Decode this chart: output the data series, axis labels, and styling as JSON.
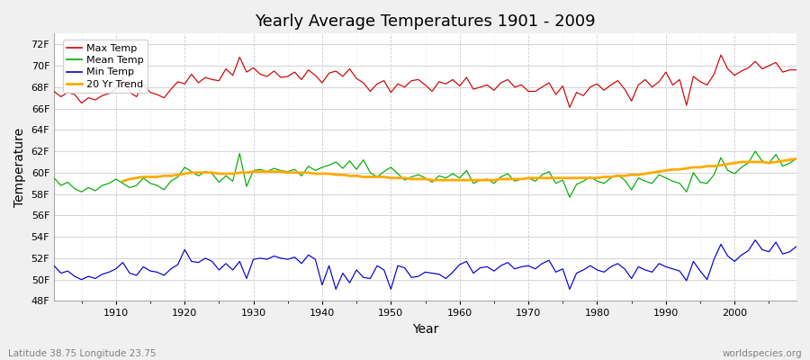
{
  "title": "Yearly Average Temperatures 1901 - 2009",
  "xlabel": "Year",
  "ylabel": "Temperature",
  "footnote_left": "Latitude 38.75 Longitude 23.75",
  "footnote_right": "worldspecies.org",
  "years": [
    1901,
    1902,
    1903,
    1904,
    1905,
    1906,
    1907,
    1908,
    1909,
    1910,
    1911,
    1912,
    1913,
    1914,
    1915,
    1916,
    1917,
    1918,
    1919,
    1920,
    1921,
    1922,
    1923,
    1924,
    1925,
    1926,
    1927,
    1928,
    1929,
    1930,
    1931,
    1932,
    1933,
    1934,
    1935,
    1936,
    1937,
    1938,
    1939,
    1940,
    1941,
    1942,
    1943,
    1944,
    1945,
    1946,
    1947,
    1948,
    1949,
    1950,
    1951,
    1952,
    1953,
    1954,
    1955,
    1956,
    1957,
    1958,
    1959,
    1960,
    1961,
    1962,
    1963,
    1964,
    1965,
    1966,
    1967,
    1968,
    1969,
    1970,
    1971,
    1972,
    1973,
    1974,
    1975,
    1976,
    1977,
    1978,
    1979,
    1980,
    1981,
    1982,
    1983,
    1984,
    1985,
    1986,
    1987,
    1988,
    1989,
    1990,
    1991,
    1992,
    1993,
    1994,
    1995,
    1996,
    1997,
    1998,
    1999,
    2000,
    2001,
    2002,
    2003,
    2004,
    2005,
    2006,
    2007,
    2008,
    2009
  ],
  "max_temp": [
    67.6,
    67.1,
    67.5,
    67.3,
    66.5,
    67.0,
    66.8,
    67.2,
    67.4,
    67.8,
    68.9,
    67.5,
    67.1,
    68.3,
    67.5,
    67.3,
    67.0,
    67.8,
    68.5,
    68.3,
    69.2,
    68.4,
    68.9,
    68.7,
    68.6,
    69.7,
    69.1,
    70.8,
    69.4,
    69.8,
    69.2,
    69.0,
    69.5,
    68.9,
    69.0,
    69.4,
    68.7,
    69.6,
    69.1,
    68.4,
    69.3,
    69.5,
    69.0,
    69.7,
    68.8,
    68.4,
    67.6,
    68.3,
    68.6,
    67.5,
    68.3,
    68.0,
    68.6,
    68.7,
    68.2,
    67.6,
    68.5,
    68.3,
    68.7,
    68.1,
    68.9,
    67.8,
    68.0,
    68.2,
    67.7,
    68.4,
    68.7,
    68.0,
    68.2,
    67.6,
    67.6,
    68.0,
    68.4,
    67.3,
    68.1,
    66.1,
    67.5,
    67.2,
    68.0,
    68.3,
    67.7,
    68.2,
    68.6,
    67.8,
    66.7,
    68.2,
    68.7,
    68.0,
    68.5,
    69.4,
    68.2,
    68.7,
    66.3,
    69.0,
    68.5,
    68.2,
    69.2,
    71.0,
    69.7,
    69.1,
    69.5,
    69.8,
    70.4,
    69.7,
    70.0,
    70.3,
    69.4,
    69.6,
    69.6
  ],
  "mean_temp": [
    59.5,
    58.8,
    59.1,
    58.5,
    58.2,
    58.6,
    58.3,
    58.8,
    59.0,
    59.4,
    59.0,
    58.6,
    58.8,
    59.5,
    59.0,
    58.8,
    58.4,
    59.2,
    59.6,
    60.5,
    60.1,
    59.7,
    60.1,
    59.9,
    59.1,
    59.7,
    59.2,
    61.8,
    58.7,
    60.2,
    60.3,
    60.1,
    60.4,
    60.2,
    60.1,
    60.3,
    59.7,
    60.6,
    60.2,
    60.5,
    60.7,
    61.0,
    60.4,
    61.1,
    60.3,
    61.2,
    60.0,
    59.6,
    60.1,
    60.5,
    59.9,
    59.3,
    59.6,
    59.8,
    59.5,
    59.1,
    59.7,
    59.5,
    59.9,
    59.5,
    60.2,
    59.0,
    59.3,
    59.4,
    59.0,
    59.6,
    59.9,
    59.2,
    59.4,
    59.5,
    59.2,
    59.8,
    60.1,
    59.0,
    59.3,
    57.7,
    58.9,
    59.2,
    59.6,
    59.2,
    59.0,
    59.5,
    59.8,
    59.3,
    58.4,
    59.5,
    59.2,
    59.0,
    59.8,
    59.5,
    59.2,
    59.0,
    58.2,
    60.0,
    59.1,
    59.0,
    59.8,
    61.4,
    60.2,
    59.9,
    60.5,
    60.9,
    62.0,
    61.1,
    60.9,
    61.7,
    60.6,
    60.9,
    61.3
  ],
  "min_temp": [
    51.3,
    50.6,
    50.8,
    50.3,
    50.0,
    50.3,
    50.1,
    50.5,
    50.7,
    51.0,
    51.6,
    50.6,
    50.4,
    51.2,
    50.8,
    50.7,
    50.4,
    51.0,
    51.4,
    52.8,
    51.7,
    51.6,
    52.0,
    51.7,
    50.9,
    51.5,
    50.9,
    51.7,
    50.1,
    51.9,
    52.0,
    51.9,
    52.2,
    52.0,
    51.9,
    52.1,
    51.5,
    52.3,
    51.9,
    49.5,
    51.3,
    49.1,
    50.6,
    49.7,
    50.9,
    50.2,
    50.1,
    51.3,
    50.9,
    49.1,
    51.3,
    51.1,
    50.2,
    50.3,
    50.7,
    50.6,
    50.5,
    50.1,
    50.7,
    51.4,
    51.7,
    50.6,
    51.1,
    51.2,
    50.8,
    51.3,
    51.6,
    51.0,
    51.2,
    51.3,
    51.0,
    51.5,
    51.8,
    50.7,
    51.0,
    49.1,
    50.6,
    50.9,
    51.3,
    50.9,
    50.7,
    51.2,
    51.5,
    51.0,
    50.1,
    51.2,
    50.9,
    50.7,
    51.5,
    51.2,
    51.0,
    50.8,
    49.9,
    51.7,
    50.8,
    50.0,
    51.9,
    53.3,
    52.2,
    51.7,
    52.3,
    52.7,
    53.7,
    52.8,
    52.6,
    53.5,
    52.4,
    52.6,
    53.1
  ],
  "trend_years": [
    1911,
    1912,
    1913,
    1914,
    1915,
    1916,
    1917,
    1918,
    1919,
    1920,
    1921,
    1922,
    1923,
    1924,
    1925,
    1926,
    1927,
    1928,
    1929,
    1930,
    1931,
    1932,
    1933,
    1934,
    1935,
    1936,
    1937,
    1938,
    1939,
    1940,
    1941,
    1942,
    1943,
    1944,
    1945,
    1946,
    1947,
    1948,
    1949,
    1950,
    1951,
    1952,
    1953,
    1954,
    1955,
    1956,
    1957,
    1958,
    1959,
    1960,
    1961,
    1962,
    1963,
    1964,
    1965,
    1966,
    1967,
    1968,
    1969,
    1970,
    1971,
    1972,
    1973,
    1974,
    1975,
    1976,
    1977,
    1978,
    1979,
    1980,
    1981,
    1982,
    1983,
    1984,
    1985,
    1986,
    1987,
    1988,
    1989,
    1990,
    1991,
    1992,
    1993,
    1994,
    1995,
    1996,
    1997,
    1998,
    1999,
    2000,
    2001,
    2002,
    2003,
    2004,
    2005,
    2006,
    2007,
    2008,
    2009
  ],
  "trend_values": [
    59.2,
    59.4,
    59.5,
    59.6,
    59.6,
    59.6,
    59.7,
    59.7,
    59.8,
    59.9,
    60.0,
    60.0,
    60.0,
    60.0,
    59.9,
    59.9,
    59.9,
    60.0,
    60.0,
    60.1,
    60.1,
    60.1,
    60.1,
    60.1,
    60.0,
    60.0,
    60.0,
    60.0,
    59.9,
    59.9,
    59.9,
    59.8,
    59.8,
    59.7,
    59.7,
    59.6,
    59.6,
    59.6,
    59.6,
    59.5,
    59.5,
    59.5,
    59.4,
    59.4,
    59.4,
    59.3,
    59.3,
    59.3,
    59.3,
    59.3,
    59.3,
    59.3,
    59.3,
    59.3,
    59.3,
    59.4,
    59.4,
    59.4,
    59.4,
    59.5,
    59.5,
    59.5,
    59.5,
    59.5,
    59.5,
    59.5,
    59.5,
    59.5,
    59.5,
    59.5,
    59.6,
    59.6,
    59.7,
    59.7,
    59.8,
    59.8,
    59.9,
    60.0,
    60.1,
    60.2,
    60.3,
    60.3,
    60.4,
    60.5,
    60.5,
    60.6,
    60.6,
    60.7,
    60.8,
    60.9,
    61.0,
    61.0,
    61.0,
    61.0,
    60.9,
    61.0,
    61.1,
    61.2,
    61.3
  ],
  "max_color": "#cc0000",
  "mean_color": "#00aa00",
  "min_color": "#0000cc",
  "trend_color": "#ffaa00",
  "bg_color": "#f0f0f0",
  "plot_bg_color": "#ffffff",
  "grid_major_color": "#cccccc",
  "grid_minor_color": "#e8e8e8",
  "ylim": [
    48,
    73
  ],
  "yticks": [
    48,
    50,
    52,
    54,
    56,
    58,
    60,
    62,
    64,
    66,
    68,
    70,
    72
  ],
  "ytick_labels": [
    "48F",
    "50F",
    "52F",
    "54F",
    "56F",
    "58F",
    "60F",
    "62F",
    "64F",
    "66F",
    "68F",
    "70F",
    "72F"
  ],
  "xticks": [
    1910,
    1920,
    1930,
    1940,
    1950,
    1960,
    1970,
    1980,
    1990,
    2000
  ],
  "title_fontsize": 13,
  "axis_label_fontsize": 10,
  "tick_fontsize": 8,
  "legend_fontsize": 8
}
